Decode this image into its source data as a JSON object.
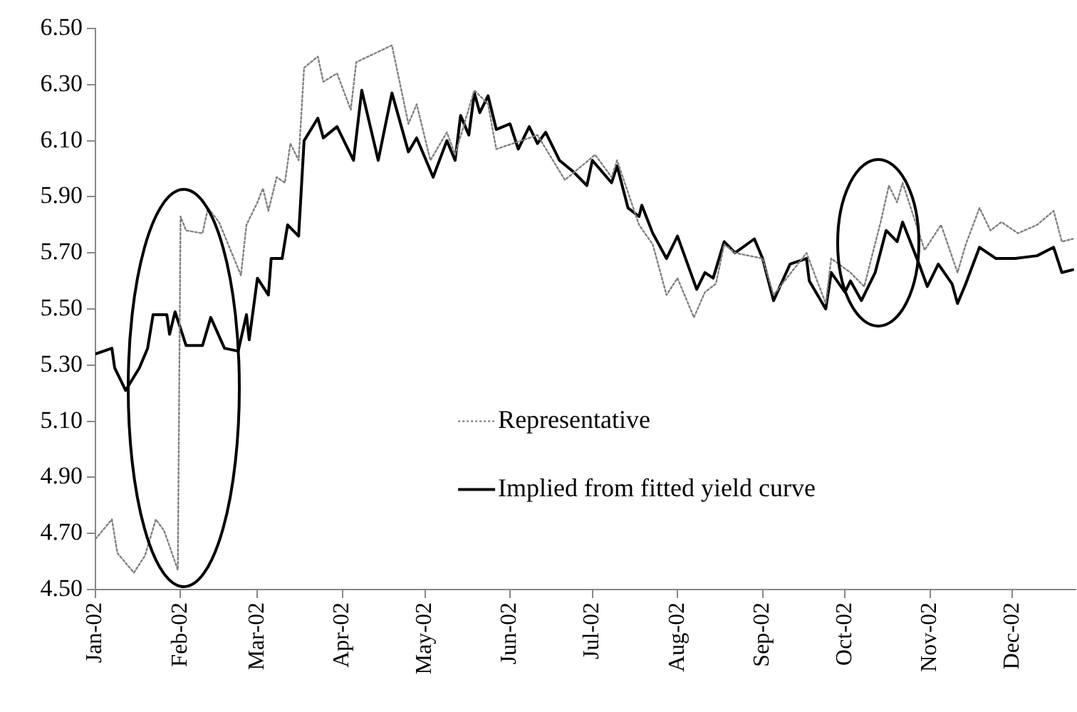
{
  "chart_data": {
    "type": "line",
    "xlim": [
      "2002-01-01",
      "2002-12-24"
    ],
    "xticks": [
      {
        "value": "2002-01-01",
        "label": "Jan-02"
      },
      {
        "value": "2002-02-01",
        "label": "Feb-02"
      },
      {
        "value": "2002-03-01",
        "label": "Mar-02"
      },
      {
        "value": "2002-04-01",
        "label": "Apr-02"
      },
      {
        "value": "2002-05-01",
        "label": "May-02"
      },
      {
        "value": "2002-06-01",
        "label": "Jun-02"
      },
      {
        "value": "2002-07-01",
        "label": "Jul-02"
      },
      {
        "value": "2002-08-01",
        "label": "Aug-02"
      },
      {
        "value": "2002-09-01",
        "label": "Sep-02"
      },
      {
        "value": "2002-10-01",
        "label": "Oct-02"
      },
      {
        "value": "2002-11-01",
        "label": "Nov-02"
      },
      {
        "value": "2002-12-01",
        "label": "Dec-02"
      }
    ],
    "ylim": [
      4.5,
      6.5
    ],
    "yticks": [
      {
        "value": 4.5,
        "label": "4.50"
      },
      {
        "value": 4.7,
        "label": "4.70"
      },
      {
        "value": 4.9,
        "label": "4.90"
      },
      {
        "value": 5.1,
        "label": "5.10"
      },
      {
        "value": 5.3,
        "label": "5.30"
      },
      {
        "value": 5.5,
        "label": "5.50"
      },
      {
        "value": 5.7,
        "label": "5.70"
      },
      {
        "value": 5.9,
        "label": "5.90"
      },
      {
        "value": 6.1,
        "label": "6.10"
      },
      {
        "value": 6.3,
        "label": "6.30"
      },
      {
        "value": 6.5,
        "label": "6.50"
      }
    ],
    "grid": false,
    "legend": "bottom",
    "marker": "none",
    "series": [
      {
        "name": "Representative",
        "color": "#808080",
        "line_style": "dotted",
        "x": [
          "2002-01-01",
          "2002-01-07",
          "2002-01-09",
          "2002-01-15",
          "2002-01-19",
          "2002-01-23",
          "2002-01-26",
          "2002-01-31",
          "2002-02-01",
          "2002-02-03",
          "2002-02-09",
          "2002-02-11",
          "2002-02-15",
          "2002-02-23",
          "2002-02-25",
          "2002-03-01",
          "2002-03-03",
          "2002-03-05",
          "2002-03-08",
          "2002-03-11",
          "2002-03-13",
          "2002-03-16",
          "2002-03-18",
          "2002-03-23",
          "2002-03-25",
          "2002-03-30",
          "2002-04-04",
          "2002-04-06",
          "2002-04-19",
          "2002-04-25",
          "2002-04-28",
          "2002-05-03",
          "2002-05-09",
          "2002-05-12",
          "2002-05-19",
          "2002-05-24",
          "2002-05-27",
          "2002-06-05",
          "2002-06-11",
          "2002-06-21",
          "2002-07-02",
          "2002-07-08",
          "2002-07-10",
          "2002-07-18",
          "2002-07-23",
          "2002-07-28",
          "2002-08-01",
          "2002-08-07",
          "2002-08-11",
          "2002-08-15",
          "2002-08-18",
          "2002-08-22",
          "2002-09-01",
          "2002-09-05",
          "2002-09-17",
          "2002-09-24",
          "2002-09-26",
          "2002-10-03",
          "2002-10-08",
          "2002-10-14",
          "2002-10-17",
          "2002-10-20",
          "2002-10-22",
          "2002-10-26",
          "2002-10-30",
          "2002-11-05",
          "2002-11-11",
          "2002-11-14",
          "2002-11-19",
          "2002-11-23",
          "2002-11-27",
          "2002-12-03",
          "2002-12-10",
          "2002-12-16",
          "2002-12-19",
          "2002-12-23"
        ],
        "values": [
          4.68,
          4.75,
          4.63,
          4.56,
          4.62,
          4.75,
          4.71,
          4.57,
          5.83,
          5.78,
          5.77,
          5.86,
          5.81,
          5.62,
          5.8,
          5.88,
          5.93,
          5.85,
          5.97,
          5.95,
          6.09,
          6.03,
          6.36,
          6.4,
          6.31,
          6.34,
          6.21,
          6.38,
          6.44,
          6.16,
          6.23,
          6.03,
          6.13,
          6.05,
          6.28,
          6.23,
          6.07,
          6.1,
          6.12,
          5.96,
          6.05,
          5.97,
          6.03,
          5.8,
          5.73,
          5.55,
          5.61,
          5.47,
          5.56,
          5.59,
          5.73,
          5.7,
          5.68,
          5.55,
          5.7,
          5.52,
          5.68,
          5.63,
          5.58,
          5.81,
          5.94,
          5.88,
          5.95,
          5.83,
          5.71,
          5.8,
          5.63,
          5.73,
          5.86,
          5.78,
          5.81,
          5.77,
          5.8,
          5.85,
          5.74,
          5.75
        ]
      },
      {
        "name": "Implied from fitted yield curve",
        "color": "#000000",
        "line_style": "solid",
        "x": [
          "2002-01-01",
          "2002-01-07",
          "2002-01-08",
          "2002-01-12",
          "2002-01-17",
          "2002-01-20",
          "2002-01-22",
          "2002-01-27",
          "2002-01-28",
          "2002-01-30",
          "2002-02-03",
          "2002-02-09",
          "2002-02-12",
          "2002-02-17",
          "2002-02-22",
          "2002-02-25",
          "2002-02-26",
          "2002-03-01",
          "2002-03-05",
          "2002-03-06",
          "2002-03-10",
          "2002-03-12",
          "2002-03-16",
          "2002-03-18",
          "2002-03-23",
          "2002-03-25",
          "2002-03-30",
          "2002-04-02",
          "2002-04-05",
          "2002-04-08",
          "2002-04-14",
          "2002-04-19",
          "2002-04-25",
          "2002-04-28",
          "2002-05-04",
          "2002-05-09",
          "2002-05-12",
          "2002-05-14",
          "2002-05-17",
          "2002-05-19",
          "2002-05-21",
          "2002-05-24",
          "2002-05-27",
          "2002-06-01",
          "2002-06-04",
          "2002-06-08",
          "2002-06-11",
          "2002-06-14",
          "2002-06-19",
          "2002-06-24",
          "2002-06-29",
          "2002-07-01",
          "2002-07-08",
          "2002-07-10",
          "2002-07-14",
          "2002-07-18",
          "2002-07-19",
          "2002-07-23",
          "2002-07-28",
          "2002-08-01",
          "2002-08-08",
          "2002-08-11",
          "2002-08-14",
          "2002-08-18",
          "2002-08-22",
          "2002-08-29",
          "2002-09-01",
          "2002-09-05",
          "2002-09-11",
          "2002-09-17",
          "2002-09-18",
          "2002-09-24",
          "2002-09-26",
          "2002-10-01",
          "2002-10-03",
          "2002-10-07",
          "2002-10-12",
          "2002-10-16",
          "2002-10-20",
          "2002-10-22",
          "2002-10-28",
          "2002-10-31",
          "2002-11-04",
          "2002-11-09",
          "2002-11-11",
          "2002-11-14",
          "2002-11-19",
          "2002-11-25",
          "2002-12-02",
          "2002-12-10",
          "2002-12-16",
          "2002-12-19",
          "2002-12-23"
        ],
        "values": [
          5.34,
          5.36,
          5.29,
          5.21,
          5.29,
          5.36,
          5.48,
          5.48,
          5.41,
          5.49,
          5.37,
          5.37,
          5.47,
          5.36,
          5.35,
          5.48,
          5.39,
          5.61,
          5.55,
          5.68,
          5.68,
          5.8,
          5.76,
          6.1,
          6.18,
          6.11,
          6.15,
          6.09,
          6.03,
          6.28,
          6.03,
          6.27,
          6.06,
          6.11,
          5.97,
          6.1,
          6.03,
          6.19,
          6.12,
          6.27,
          6.2,
          6.26,
          6.14,
          6.16,
          6.07,
          6.15,
          6.09,
          6.13,
          6.03,
          5.99,
          5.94,
          6.03,
          5.95,
          6.01,
          5.86,
          5.83,
          5.87,
          5.77,
          5.68,
          5.76,
          5.57,
          5.63,
          5.61,
          5.74,
          5.7,
          5.75,
          5.68,
          5.53,
          5.66,
          5.68,
          5.6,
          5.5,
          5.63,
          5.56,
          5.6,
          5.53,
          5.63,
          5.78,
          5.74,
          5.81,
          5.66,
          5.58,
          5.66,
          5.59,
          5.52,
          5.59,
          5.72,
          5.68,
          5.68,
          5.69,
          5.72,
          5.63,
          5.64
        ]
      }
    ]
  }
}
